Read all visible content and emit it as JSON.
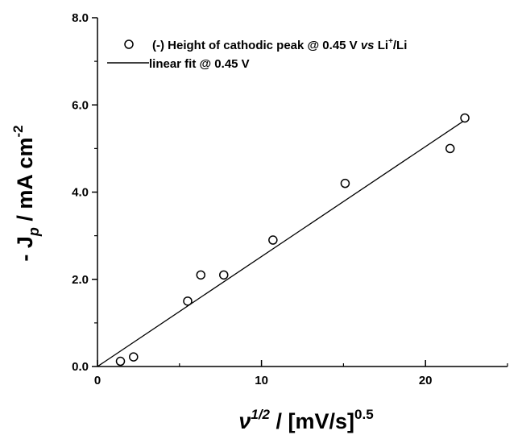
{
  "chart_data": {
    "type": "scatter",
    "xlim": [
      0,
      25
    ],
    "ylim": [
      0,
      8
    ],
    "x_ticks": [
      0,
      10,
      20
    ],
    "x_tick_labels": [
      "0",
      "10",
      "20"
    ],
    "y_ticks": [
      0,
      2,
      4,
      6,
      8
    ],
    "y_tick_labels": [
      "0.0",
      "2.0",
      "4.0",
      "6.0",
      "8.0"
    ],
    "grid": false,
    "legend_position": "top",
    "xlabel": {
      "symbol": "ν",
      "exponent": "1/2",
      "unit": " / [mV/s]",
      "unit_exponent": "0.5"
    },
    "ylabel": {
      "prefix": "- J",
      "subscript": "p",
      "unit": " / mA cm",
      "unit_exponent": "-2"
    },
    "series": [
      {
        "marker": "open-circle",
        "legend": {
          "prefix": "(-) Height of cathodic peak @ 0.45 V ",
          "italic": "vs",
          "middle": " Li",
          "superscript": "+",
          "suffix": "/Li"
        },
        "x": [
          1.4,
          2.2,
          5.5,
          6.3,
          7.7,
          10.7,
          15.1,
          21.5,
          22.4
        ],
        "y": [
          0.12,
          0.22,
          1.5,
          2.1,
          2.1,
          2.9,
          4.2,
          5.0,
          5.7
        ]
      },
      {
        "line": "solid",
        "legend": {
          "text": "linear fit @ 0.45 V"
        },
        "x": [
          0,
          22.4
        ],
        "y": [
          0,
          5.65
        ]
      }
    ]
  }
}
